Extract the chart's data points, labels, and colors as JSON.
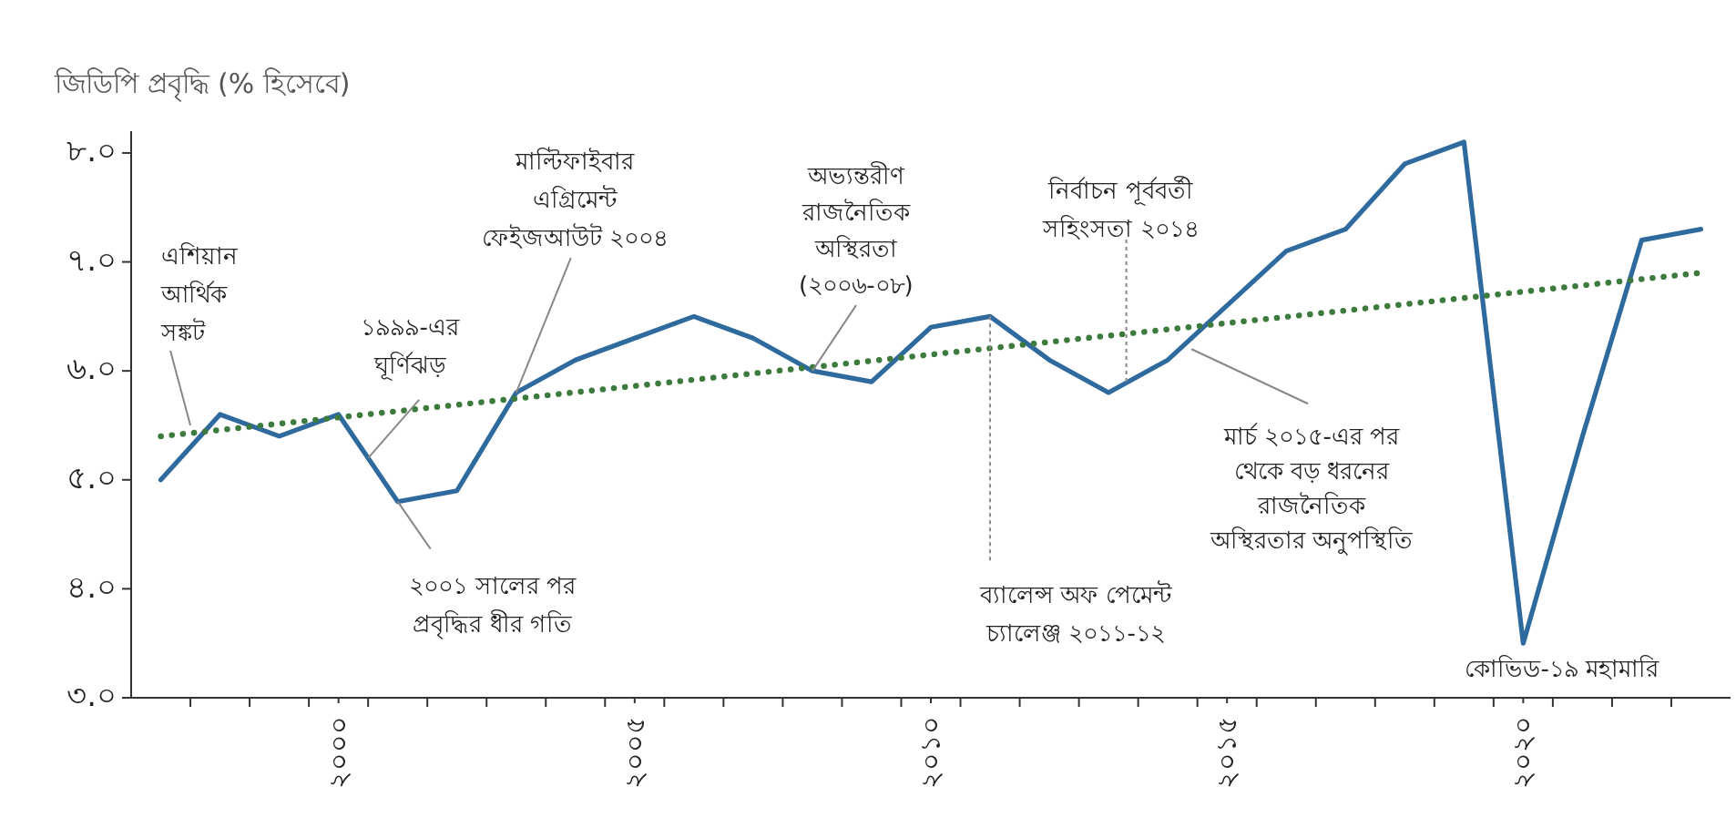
{
  "chart_data": {
    "type": "line",
    "title": "জিডিপি প্রবৃদ্ধি (% হিসেবে)",
    "xlim": [
      1996.5,
      2023.5
    ],
    "xticks": [
      {
        "value": 1997.5,
        "label": null
      },
      {
        "value": 1998.5,
        "label": null
      },
      {
        "value": 1999.5,
        "label": null
      },
      {
        "value": 2000,
        "label": "২০০০"
      },
      {
        "value": 2000.5,
        "label": null
      },
      {
        "value": 2001.5,
        "label": null
      },
      {
        "value": 2002.5,
        "label": null
      },
      {
        "value": 2003.5,
        "label": null
      },
      {
        "value": 2004.5,
        "label": null
      },
      {
        "value": 2005,
        "label": "২০০৫"
      },
      {
        "value": 2005.5,
        "label": null
      },
      {
        "value": 2006.5,
        "label": null
      },
      {
        "value": 2007.5,
        "label": null
      },
      {
        "value": 2008.5,
        "label": null
      },
      {
        "value": 2009.5,
        "label": null
      },
      {
        "value": 2010,
        "label": "২০১০"
      },
      {
        "value": 2010.5,
        "label": null
      },
      {
        "value": 2011.5,
        "label": null
      },
      {
        "value": 2012.5,
        "label": null
      },
      {
        "value": 2013.5,
        "label": null
      },
      {
        "value": 2014.5,
        "label": null
      },
      {
        "value": 2015,
        "label": "২০১৫"
      },
      {
        "value": 2015.5,
        "label": null
      },
      {
        "value": 2016.5,
        "label": null
      },
      {
        "value": 2017.5,
        "label": null
      },
      {
        "value": 2018.5,
        "label": null
      },
      {
        "value": 2019.5,
        "label": null
      },
      {
        "value": 2020,
        "label": "২০২০"
      },
      {
        "value": 2020.5,
        "label": null
      },
      {
        "value": 2021.5,
        "label": null
      },
      {
        "value": 2022.5,
        "label": null
      }
    ],
    "ylim": [
      3,
      8.2
    ],
    "yticks": [
      {
        "value": 3,
        "label": "৩.০"
      },
      {
        "value": 4,
        "label": "৪.০"
      },
      {
        "value": 5,
        "label": "৫.০"
      },
      {
        "value": 6,
        "label": "৬.০"
      },
      {
        "value": 7,
        "label": "৭.০"
      },
      {
        "value": 8,
        "label": "৮.০"
      }
    ],
    "grid": false,
    "marker": "none",
    "series": [
      {
        "color": "#2f6a9e",
        "line_style": "solid",
        "x": [
          1997,
          1998,
          1999,
          2000,
          2001,
          2002,
          2003,
          2004,
          2005,
          2006,
          2007,
          2008,
          2009,
          2010,
          2011,
          2012,
          2013,
          2014,
          2015,
          2016,
          2017,
          2018,
          2019,
          2020,
          2021,
          2022,
          2023
        ],
        "values": [
          5.0,
          5.6,
          5.4,
          5.6,
          4.8,
          4.9,
          5.8,
          6.1,
          6.3,
          6.5,
          6.3,
          6.0,
          5.9,
          6.4,
          6.5,
          6.1,
          5.8,
          6.1,
          6.6,
          7.1,
          7.3,
          7.9,
          8.1,
          3.5,
          5.4,
          7.2,
          7.3
        ]
      },
      {
        "color": "#3d7a3d",
        "line_style": "dotted",
        "x": [
          1997,
          2023
        ],
        "values": [
          5.4,
          6.9
        ]
      }
    ],
    "annotations": [
      {
        "text": "এশিয়ান\nআর্থিক\nসঙ্কট",
        "x": 1997.5,
        "y": 5.5
      },
      {
        "text": "১৯৯৯-এর\nঘূর্ণিঝড়",
        "x": 2000.5,
        "y": 5.2
      },
      {
        "text": "মাল্টিফাইবার\nএগ্রিমেন্ট\nফেইজআউট ২০০৪",
        "x": 2003,
        "y": 5.8
      },
      {
        "text": "অভ্যন্তরীণ\nরাজনৈতিক\nঅস্থিরতা\n(২০০৬-০৮)",
        "x": 2008,
        "y": 6.0
      },
      {
        "text": "২০০১ সালের পর\nপ্রবৃদ্ধির ধীর গতি",
        "x": 2001,
        "y": 4.8
      },
      {
        "text": "ব্যালেন্স অফ পেমেন্ট\nচ্যালেঞ্জ ২০১১-১২",
        "x": 2011,
        "y": 6.5
      },
      {
        "text": "নির্বাচন পূর্ববর্তী\nসহিংসতা ২০১৪",
        "x": 2013.3,
        "y": 5.9
      },
      {
        "text": "মার্চ ২০১৫-এর পর\nথেকে বড় ধরনের\nরাজনৈতিক\nঅস্থিরতার অনুপস্থিতি",
        "x": 2014.4,
        "y": 6.2
      },
      {
        "text": "কোভিড-১৯ মহামারি",
        "x": 2020,
        "y": 3.5
      }
    ]
  }
}
